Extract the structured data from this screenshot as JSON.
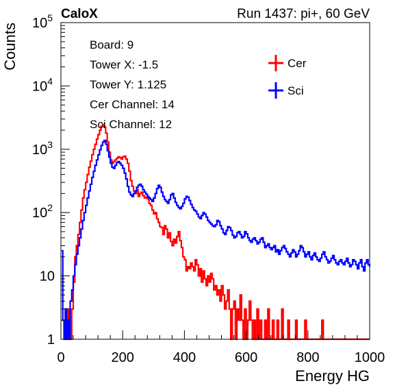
{
  "header": {
    "left_label": "CaloX",
    "right_label": "Run 1437: pi+, 60 GeV"
  },
  "info_lines": [
    "Board: 9",
    "Tower X: -1.5",
    "Tower Y: 1.125",
    "Cer Channel: 14",
    "Sci Channel: 12"
  ],
  "colors": {
    "Cer": "#ff0000",
    "Sci": "#0000ff",
    "axis": "#000000",
    "background": "#ffffff"
  },
  "chart_data": {
    "type": "line",
    "title": "",
    "xlabel": "Energy HG",
    "ylabel": "Counts",
    "xlim": [
      0,
      1000
    ],
    "ylim": [
      1,
      100000
    ],
    "yscale": "log",
    "grid": false,
    "legend_position": "top-right",
    "x_ticks": [
      0,
      200,
      400,
      600,
      800,
      1000
    ],
    "x_tick_labels": [
      "0",
      "200",
      "400",
      "600",
      "800",
      "1000"
    ],
    "y_ticks": [
      1,
      10,
      100,
      1000,
      10000,
      100000
    ],
    "y_tick_labels": [
      {
        "base": "1",
        "exp": ""
      },
      {
        "base": "10",
        "exp": ""
      },
      {
        "base": "10",
        "exp": "2"
      },
      {
        "base": "10",
        "exp": "3"
      },
      {
        "base": "10",
        "exp": "4"
      },
      {
        "base": "10",
        "exp": "5"
      }
    ],
    "series": [
      {
        "name": "Cer",
        "color": "#ff0000",
        "x": [
          18,
          22,
          26,
          30,
          35,
          40,
          45,
          50,
          55,
          60,
          65,
          70,
          75,
          80,
          85,
          90,
          95,
          100,
          105,
          110,
          115,
          120,
          125,
          130,
          135,
          140,
          145,
          150,
          155,
          160,
          165,
          170,
          175,
          180,
          185,
          190,
          195,
          200,
          205,
          210,
          215,
          220,
          225,
          230,
          235,
          240,
          245,
          250,
          255,
          260,
          265,
          270,
          275,
          280,
          285,
          290,
          295,
          300,
          305,
          310,
          315,
          320,
          325,
          330,
          335,
          340,
          345,
          350,
          355,
          360,
          365,
          370,
          375,
          380,
          385,
          390,
          395,
          400,
          405,
          410,
          415,
          420,
          425,
          430,
          435,
          440,
          445,
          450,
          455,
          460,
          465,
          470,
          475,
          480,
          485,
          490,
          495,
          500,
          505,
          510,
          515,
          520,
          525,
          530,
          535,
          540,
          545,
          550,
          555,
          560,
          565,
          570,
          575,
          580,
          585,
          590,
          595,
          600,
          605,
          610,
          615,
          620,
          625,
          630,
          635,
          640,
          645,
          650,
          655,
          660,
          665,
          670,
          675,
          680,
          685,
          690,
          695,
          700,
          705,
          710,
          715,
          720,
          725,
          730,
          735,
          740,
          745,
          750,
          755,
          760,
          765,
          770,
          775,
          780,
          785,
          790,
          795,
          800,
          805,
          810,
          815,
          820,
          825,
          830,
          835,
          840,
          845,
          850,
          855,
          860,
          865,
          870,
          875,
          880,
          885,
          890,
          895,
          900,
          905,
          910,
          915,
          920,
          925,
          930,
          935,
          940,
          945,
          950,
          955,
          960,
          965,
          970,
          975,
          980,
          985,
          990,
          995,
          1000
        ],
        "values": [
          2,
          3,
          2,
          1,
          3,
          8,
          20,
          30,
          45,
          70,
          110,
          170,
          230,
          300,
          400,
          520,
          650,
          820,
          1000,
          1200,
          1450,
          1700,
          2000,
          2300,
          2450,
          2250,
          1800,
          1300,
          900,
          680,
          600,
          640,
          680,
          720,
          760,
          740,
          700,
          760,
          780,
          700,
          600,
          450,
          320,
          260,
          220,
          200,
          230,
          180,
          200,
          210,
          185,
          170,
          175,
          165,
          140,
          130,
          110,
          95,
          100,
          80,
          70,
          60,
          58,
          45,
          62,
          55,
          40,
          48,
          35,
          30,
          38,
          33,
          42,
          50,
          36,
          28,
          20,
          18,
          12,
          14,
          13,
          16,
          14,
          12,
          18,
          15,
          10,
          13,
          8,
          12,
          9,
          7,
          10,
          8,
          11,
          9,
          6,
          7,
          5,
          6,
          4,
          7,
          5,
          3,
          4,
          6,
          3,
          1,
          3,
          4,
          1,
          3,
          2,
          5,
          2,
          1,
          3,
          1,
          2,
          4,
          2,
          1,
          2,
          1,
          3,
          1,
          2,
          1,
          1,
          2,
          1,
          3,
          1,
          1,
          2,
          1,
          1,
          2,
          1,
          1,
          3,
          1,
          1,
          1,
          2,
          1,
          1,
          1,
          1,
          2,
          1,
          1,
          1,
          1,
          1,
          2,
          1,
          1,
          1,
          1,
          1,
          1,
          1,
          1,
          1,
          1,
          2,
          1,
          1,
          1,
          1,
          1,
          1,
          1,
          1,
          1,
          1,
          1,
          1,
          1,
          1,
          1,
          1,
          1,
          1,
          1,
          1,
          1,
          1,
          1,
          1,
          1,
          1,
          1,
          1,
          1,
          1,
          1
        ]
      },
      {
        "name": "Sci",
        "color": "#0000ff",
        "x": [
          2,
          6,
          10,
          14,
          18,
          22,
          26,
          30,
          35,
          40,
          45,
          50,
          55,
          60,
          65,
          70,
          75,
          80,
          85,
          90,
          95,
          100,
          105,
          110,
          115,
          120,
          125,
          130,
          135,
          140,
          145,
          150,
          155,
          160,
          165,
          170,
          175,
          180,
          185,
          190,
          195,
          200,
          205,
          210,
          215,
          220,
          225,
          230,
          235,
          240,
          245,
          250,
          255,
          260,
          265,
          270,
          275,
          280,
          285,
          290,
          295,
          300,
          305,
          310,
          315,
          320,
          325,
          330,
          335,
          340,
          345,
          350,
          355,
          360,
          365,
          370,
          375,
          380,
          385,
          390,
          395,
          400,
          405,
          410,
          415,
          420,
          425,
          430,
          435,
          440,
          445,
          450,
          455,
          460,
          465,
          470,
          475,
          480,
          485,
          490,
          495,
          500,
          505,
          510,
          515,
          520,
          525,
          530,
          535,
          540,
          545,
          550,
          555,
          560,
          565,
          570,
          575,
          580,
          585,
          590,
          595,
          600,
          605,
          610,
          615,
          620,
          625,
          630,
          635,
          640,
          645,
          650,
          655,
          660,
          665,
          670,
          675,
          680,
          685,
          690,
          695,
          700,
          705,
          710,
          715,
          720,
          725,
          730,
          735,
          740,
          745,
          750,
          755,
          760,
          765,
          770,
          775,
          780,
          785,
          790,
          795,
          800,
          805,
          810,
          815,
          820,
          825,
          830,
          835,
          840,
          845,
          850,
          855,
          860,
          865,
          870,
          875,
          880,
          885,
          890,
          895,
          900,
          905,
          910,
          915,
          920,
          925,
          930,
          935,
          940,
          945,
          950,
          955,
          960,
          965,
          970,
          975,
          980,
          985,
          990,
          995,
          1000
        ],
        "values": [
          25,
          2,
          1,
          3,
          1,
          2,
          1,
          4,
          6,
          10,
          15,
          22,
          30,
          40,
          55,
          75,
          100,
          130,
          170,
          220,
          280,
          360,
          450,
          560,
          680,
          820,
          980,
          1150,
          1300,
          1380,
          1200,
          950,
          750,
          600,
          520,
          500,
          560,
          620,
          640,
          600,
          560,
          500,
          420,
          340,
          260,
          210,
          190,
          180,
          200,
          220,
          250,
          270,
          280,
          260,
          230,
          210,
          195,
          180,
          170,
          160,
          150,
          170,
          200,
          240,
          270,
          250,
          210,
          180,
          160,
          150,
          140,
          160,
          190,
          200,
          170,
          145,
          130,
          120,
          115,
          125,
          140,
          165,
          180,
          175,
          155,
          135,
          120,
          110,
          105,
          95,
          85,
          80,
          90,
          100,
          95,
          85,
          75,
          70,
          66,
          62,
          60,
          64,
          75,
          72,
          62,
          55,
          48,
          45,
          52,
          60,
          58,
          52,
          44,
          40,
          42,
          48,
          50,
          45,
          40,
          42,
          50,
          46,
          40,
          36,
          34,
          38,
          40,
          36,
          32,
          34,
          38,
          40,
          34,
          28,
          30,
          32,
          28,
          26,
          28,
          30,
          24,
          26,
          22,
          25,
          28,
          30,
          27,
          24,
          22,
          20,
          23,
          26,
          24,
          20,
          22,
          25,
          30,
          28,
          24,
          20,
          22,
          24,
          20,
          18,
          21,
          23,
          20,
          18,
          17,
          19,
          22,
          24,
          20,
          18,
          16,
          17,
          19,
          21,
          18,
          16,
          15,
          17,
          18,
          16,
          15,
          17,
          19,
          16,
          14,
          15,
          18,
          17,
          15,
          13,
          16,
          18,
          14,
          12,
          16,
          18,
          15,
          14
        ]
      }
    ]
  }
}
